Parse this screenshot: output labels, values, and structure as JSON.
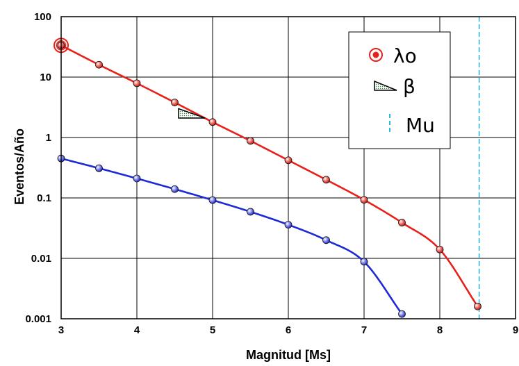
{
  "chart_data": {
    "type": "line",
    "title": "",
    "xlabel": "Magnitud  [Ms]",
    "ylabel": "Eventos/Año",
    "xlim": [
      3,
      9
    ],
    "ylim": [
      0.001,
      100
    ],
    "yscale": "log",
    "grid": true,
    "legend_position": "top-right",
    "x_ticks": [
      "3",
      "4",
      "5",
      "6",
      "7",
      "8",
      "9"
    ],
    "y_ticks": [
      "0.001",
      "0.01",
      "0.1",
      "1",
      "10",
      "100"
    ],
    "series": [
      {
        "color": "#e8201c",
        "points": [
          [
            3.0,
            33.5
          ],
          [
            3.5,
            16.0
          ],
          [
            4.0,
            7.9
          ],
          [
            4.5,
            3.8
          ],
          [
            5.0,
            1.8
          ],
          [
            5.5,
            0.88
          ],
          [
            6.0,
            0.42
          ],
          [
            6.5,
            0.2
          ],
          [
            7.0,
            0.093
          ],
          [
            7.5,
            0.039
          ],
          [
            8.0,
            0.014
          ],
          [
            8.5,
            0.0016
          ]
        ]
      },
      {
        "color": "#1e2ad6",
        "points": [
          [
            3.0,
            0.45
          ],
          [
            3.5,
            0.31
          ],
          [
            4.0,
            0.21
          ],
          [
            4.5,
            0.14
          ],
          [
            5.0,
            0.092
          ],
          [
            5.5,
            0.059
          ],
          [
            6.0,
            0.036
          ],
          [
            6.5,
            0.02
          ],
          [
            7.0,
            0.0088
          ],
          [
            7.5,
            0.0012
          ]
        ]
      }
    ],
    "mu_line": {
      "x": 8.52,
      "color": "#2ab8e0"
    },
    "beta_triangle": {
      "x": [
        4.55,
        4.9
      ],
      "y": [
        3.0,
        2.1
      ]
    },
    "legend": [
      {
        "marker": "lambda-marker-icon",
        "label": "λo"
      },
      {
        "marker": "beta-triangle-icon",
        "label": "β"
      },
      {
        "marker": "dashed-line-icon",
        "label": "Mu"
      }
    ]
  }
}
